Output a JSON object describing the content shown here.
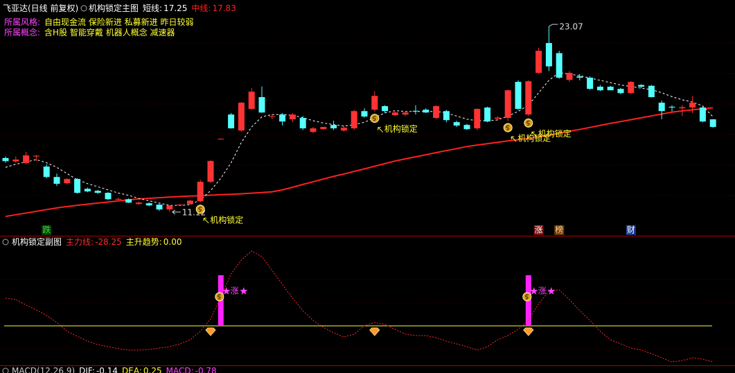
{
  "header": {
    "title": "飞亚达(日线 前复权)",
    "indicator": "机构锁定主图"
  },
  "info": [
    {
      "label": "所属风格:",
      "text": "自由现金流 保险新进 私募新进 昨日较弱"
    },
    {
      "label": "所属概念:",
      "text": "含H股 智能穿戴 机器人概念 减速器"
    }
  ],
  "chart_data": [
    {
      "type": "candlestick",
      "ylim": [
        9.6,
        24.1
      ],
      "up_color": "#ff3333",
      "down_color": "#54ffff",
      "candles": [
        [
          14.6,
          14.7,
          14.3,
          14.4
        ],
        [
          14.38,
          14.7,
          14.3,
          14.5
        ],
        [
          14.28,
          15.0,
          14.2,
          14.77
        ],
        [
          14.7,
          14.8,
          14.4,
          14.75
        ],
        [
          14.05,
          14.2,
          13.3,
          13.38
        ],
        [
          13.38,
          13.6,
          12.8,
          12.94
        ],
        [
          12.98,
          13.3,
          12.9,
          13.25
        ],
        [
          13.25,
          13.3,
          12.3,
          12.36
        ],
        [
          12.62,
          12.7,
          12.4,
          12.45
        ],
        [
          12.49,
          12.55,
          12.3,
          12.36
        ],
        [
          12.36,
          12.4,
          11.9,
          11.95
        ],
        [
          11.93,
          12.05,
          11.9,
          11.97
        ],
        [
          11.95,
          12.0,
          11.7,
          11.73
        ],
        [
          11.64,
          11.8,
          11.6,
          11.73
        ],
        [
          11.69,
          11.75,
          11.5,
          11.55
        ],
        [
          11.6,
          11.65,
          11.2,
          11.29
        ],
        [
          11.29,
          11.55,
          11.12,
          11.55
        ],
        [
          11.58,
          11.65,
          11.5,
          11.6
        ],
        [
          11.64,
          11.9,
          11.6,
          11.86
        ],
        [
          11.82,
          13.2,
          11.75,
          13.07
        ],
        [
          13.07,
          14.45,
          13.0,
          14.41
        ],
        [
          15.82,
          15.86,
          15.8,
          15.84
        ],
        [
          17.4,
          17.5,
          16.5,
          16.51
        ],
        [
          16.37,
          18.2,
          16.3,
          18.16
        ],
        [
          17.76,
          19.1,
          17.7,
          18.87
        ],
        [
          18.52,
          19.2,
          17.5,
          17.53
        ],
        [
          17.27,
          17.4,
          17.1,
          17.29
        ],
        [
          17.4,
          17.5,
          16.7,
          16.95
        ],
        [
          17.09,
          17.5,
          16.9,
          17.4
        ],
        [
          17.18,
          17.3,
          16.4,
          16.51
        ],
        [
          16.28,
          16.6,
          16.2,
          16.51
        ],
        [
          16.46,
          16.6,
          16.4,
          16.6
        ],
        [
          16.73,
          17.0,
          16.4,
          16.51
        ],
        [
          16.37,
          16.7,
          16.3,
          16.55
        ],
        [
          16.51,
          17.7,
          16.4,
          17.62
        ],
        [
          17.62,
          17.8,
          17.2,
          17.27
        ],
        [
          17.71,
          18.9,
          17.6,
          18.6
        ],
        [
          17.94,
          18.0,
          17.5,
          17.62
        ],
        [
          17.36,
          17.6,
          17.3,
          17.53
        ],
        [
          17.4,
          17.6,
          17.3,
          17.53
        ],
        [
          17.64,
          18.0,
          17.4,
          17.6
        ],
        [
          17.71,
          17.8,
          17.5,
          17.53
        ],
        [
          17.18,
          18.0,
          17.1,
          17.94
        ],
        [
          17.62,
          17.7,
          16.9,
          17.04
        ],
        [
          16.91,
          17.0,
          16.6,
          16.69
        ],
        [
          16.73,
          16.8,
          16.4,
          16.46
        ],
        [
          16.51,
          17.8,
          16.4,
          17.76
        ],
        [
          17.85,
          17.9,
          16.9,
          16.95
        ],
        [
          17.13,
          17.3,
          17.0,
          17.2
        ],
        [
          17.18,
          19.0,
          17.0,
          18.96
        ],
        [
          19.5,
          19.6,
          17.7,
          17.76
        ],
        [
          17.4,
          19.6,
          17.3,
          19.54
        ],
        [
          20.08,
          21.7,
          20.0,
          21.5
        ],
        [
          22.0,
          23.07,
          20.2,
          20.5
        ],
        [
          21.35,
          21.5,
          19.7,
          19.77
        ],
        [
          19.63,
          20.2,
          19.5,
          20.08
        ],
        [
          19.85,
          20.0,
          19.6,
          19.77
        ],
        [
          19.77,
          19.85,
          19.0,
          19.05
        ],
        [
          19.19,
          19.3,
          18.9,
          18.96
        ],
        [
          19.19,
          19.25,
          19.0,
          18.96
        ],
        [
          19.05,
          19.1,
          18.7,
          18.78
        ],
        [
          18.78,
          19.55,
          18.7,
          19.5
        ],
        [
          19.3,
          19.35,
          19.1,
          19.19
        ],
        [
          19.25,
          19.3,
          18.5,
          18.52
        ],
        [
          18.16,
          18.3,
          17.1,
          17.62
        ],
        [
          17.9,
          18.0,
          17.6,
          17.85
        ],
        [
          17.8,
          18.0,
          17.3,
          17.87
        ],
        [
          17.85,
          18.6,
          17.5,
          18.16
        ],
        [
          17.85,
          17.9,
          16.9,
          16.95
        ],
        [
          17.09,
          17.1,
          16.55,
          16.6
        ]
      ],
      "series": [
        {
          "name": "短线:",
          "color": "#ffffff",
          "dashed": true,
          "values": [
            14.0,
            14.2,
            14.35,
            14.5,
            14.3,
            14.0,
            13.6,
            13.2,
            12.95,
            12.75,
            12.55,
            12.35,
            12.2,
            12.0,
            11.85,
            11.7,
            11.55,
            11.55,
            11.6,
            11.9,
            12.5,
            13.3,
            14.3,
            15.6,
            16.6,
            17.25,
            17.4,
            17.4,
            17.35,
            17.2,
            17.0,
            16.85,
            16.75,
            16.65,
            16.75,
            16.9,
            17.2,
            17.5,
            17.65,
            17.6,
            17.6,
            17.6,
            17.6,
            17.5,
            17.3,
            17.1,
            17.0,
            17.0,
            17.05,
            17.3,
            17.6,
            18.0,
            18.8,
            19.6,
            20.1,
            20.0,
            19.9,
            19.75,
            19.6,
            19.45,
            19.3,
            19.2,
            19.1,
            19.0,
            18.8,
            18.55,
            18.35,
            18.2,
            17.95,
            17.25
          ]
        },
        {
          "name": "中线:",
          "color": "#ff2020",
          "dashed": false,
          "values": [
            10.84,
            10.95,
            11.06,
            11.17,
            11.28,
            11.39,
            11.48,
            11.56,
            11.63,
            11.7,
            11.77,
            11.84,
            11.91,
            11.97,
            12.01,
            12.05,
            12.09,
            12.12,
            12.15,
            12.18,
            12.21,
            12.24,
            12.27,
            12.3,
            12.34,
            12.38,
            12.43,
            12.55,
            12.72,
            12.9,
            13.07,
            13.25,
            13.42,
            13.57,
            13.74,
            13.9,
            14.07,
            14.24,
            14.41,
            14.55,
            14.68,
            14.81,
            14.95,
            15.08,
            15.21,
            15.34,
            15.43,
            15.52,
            15.61,
            15.7,
            15.78,
            15.87,
            15.96,
            16.07,
            16.2,
            16.32,
            16.44,
            16.57,
            16.7,
            16.83,
            16.95,
            17.07,
            17.19,
            17.31,
            17.43,
            17.55,
            17.63,
            17.7,
            17.77,
            17.83
          ]
        }
      ],
      "annotations": [
        {
          "index": 19,
          "text": "机构锁定"
        },
        {
          "index": 36,
          "text": "机构锁定"
        },
        {
          "index": 49,
          "text": "机构锁定"
        },
        {
          "index": 51,
          "text": "机构锁定"
        }
      ],
      "markers": [
        {
          "index": 4,
          "text": "跌",
          "color": "#33dd33",
          "bg": "#0d3d0d"
        },
        {
          "index": 52,
          "text": "涨",
          "color": "#ffffff",
          "bg": "#7a1010"
        },
        {
          "index": 54,
          "text": "榜",
          "color": "#ffd27a",
          "bg": "#6a3a10"
        },
        {
          "index": 61,
          "text": "财",
          "color": "#ffffff",
          "bg": "#1a3a8a"
        }
      ]
    },
    {
      "type": "indicator",
      "title": "机构锁定副图",
      "ylim": [
        -32.6,
        60.9
      ],
      "bar_color": "#ff22ff",
      "series": [
        {
          "name": "主力线:",
          "color": "#ff2a2a",
          "values": [
            21.7,
            20.7,
            16.3,
            12.5,
            8.2,
            2.7,
            -4.3,
            -8.2,
            -12,
            -14.7,
            -16.3,
            -17.9,
            -19,
            -19,
            -18.5,
            -17.4,
            -16.3,
            -14.1,
            -10.9,
            -4.3,
            5.4,
            22.8,
            40.8,
            51.6,
            58.7,
            54.3,
            43.5,
            32.6,
            21.7,
            12,
            4.3,
            -1.1,
            -5.4,
            -8.7,
            -6.5,
            0,
            2.7,
            1.1,
            -2.7,
            -6.5,
            -7.6,
            -7.6,
            -9.2,
            -12,
            -14.1,
            -16.3,
            -19,
            -16.3,
            -10.9,
            -7.6,
            -2.7,
            4.3,
            17.4,
            27.2,
            28.3,
            20.7,
            12,
            4.3,
            -4.3,
            -10.9,
            -14.1,
            -17.4,
            -19,
            -21.7,
            -25,
            -28.3,
            -27.2,
            -25,
            -26.1,
            -28.25
          ]
        },
        {
          "name": "主升趋势:",
          "color": "#ffff33",
          "readout": {
            "value": 0,
            "label": "0.00"
          },
          "values": [
            0,
            0,
            0,
            0,
            0,
            0,
            0,
            0,
            0,
            0,
            0,
            0,
            0,
            0,
            0,
            0,
            0,
            0,
            0,
            0,
            0,
            39.7,
            0,
            0,
            0,
            0,
            0,
            0,
            0,
            0,
            0,
            0,
            0,
            0,
            0,
            0,
            0,
            0,
            0,
            0,
            0,
            0,
            0,
            0,
            0,
            0,
            0,
            0,
            0,
            0,
            0,
            39.7,
            0,
            0,
            0,
            0,
            0,
            0,
            0,
            0,
            0,
            0,
            0,
            0,
            0,
            0,
            0,
            0,
            0,
            0
          ]
        }
      ],
      "signals": [
        {
          "index": 21,
          "text": "涨"
        },
        {
          "index": 51,
          "text": "涨"
        }
      ],
      "diamonds": [
        20,
        36,
        51
      ]
    }
  ],
  "macd_header": {
    "title": "MACD(12,26,9)",
    "items": [
      {
        "label": "DIF:",
        "value": -0.14,
        "color": "#ffffff"
      },
      {
        "label": "DEA:",
        "value": 0.25,
        "color": "#ffff33"
      },
      {
        "label": "MACD:",
        "value": -0.78,
        "color": "#ff44ff"
      }
    ]
  }
}
